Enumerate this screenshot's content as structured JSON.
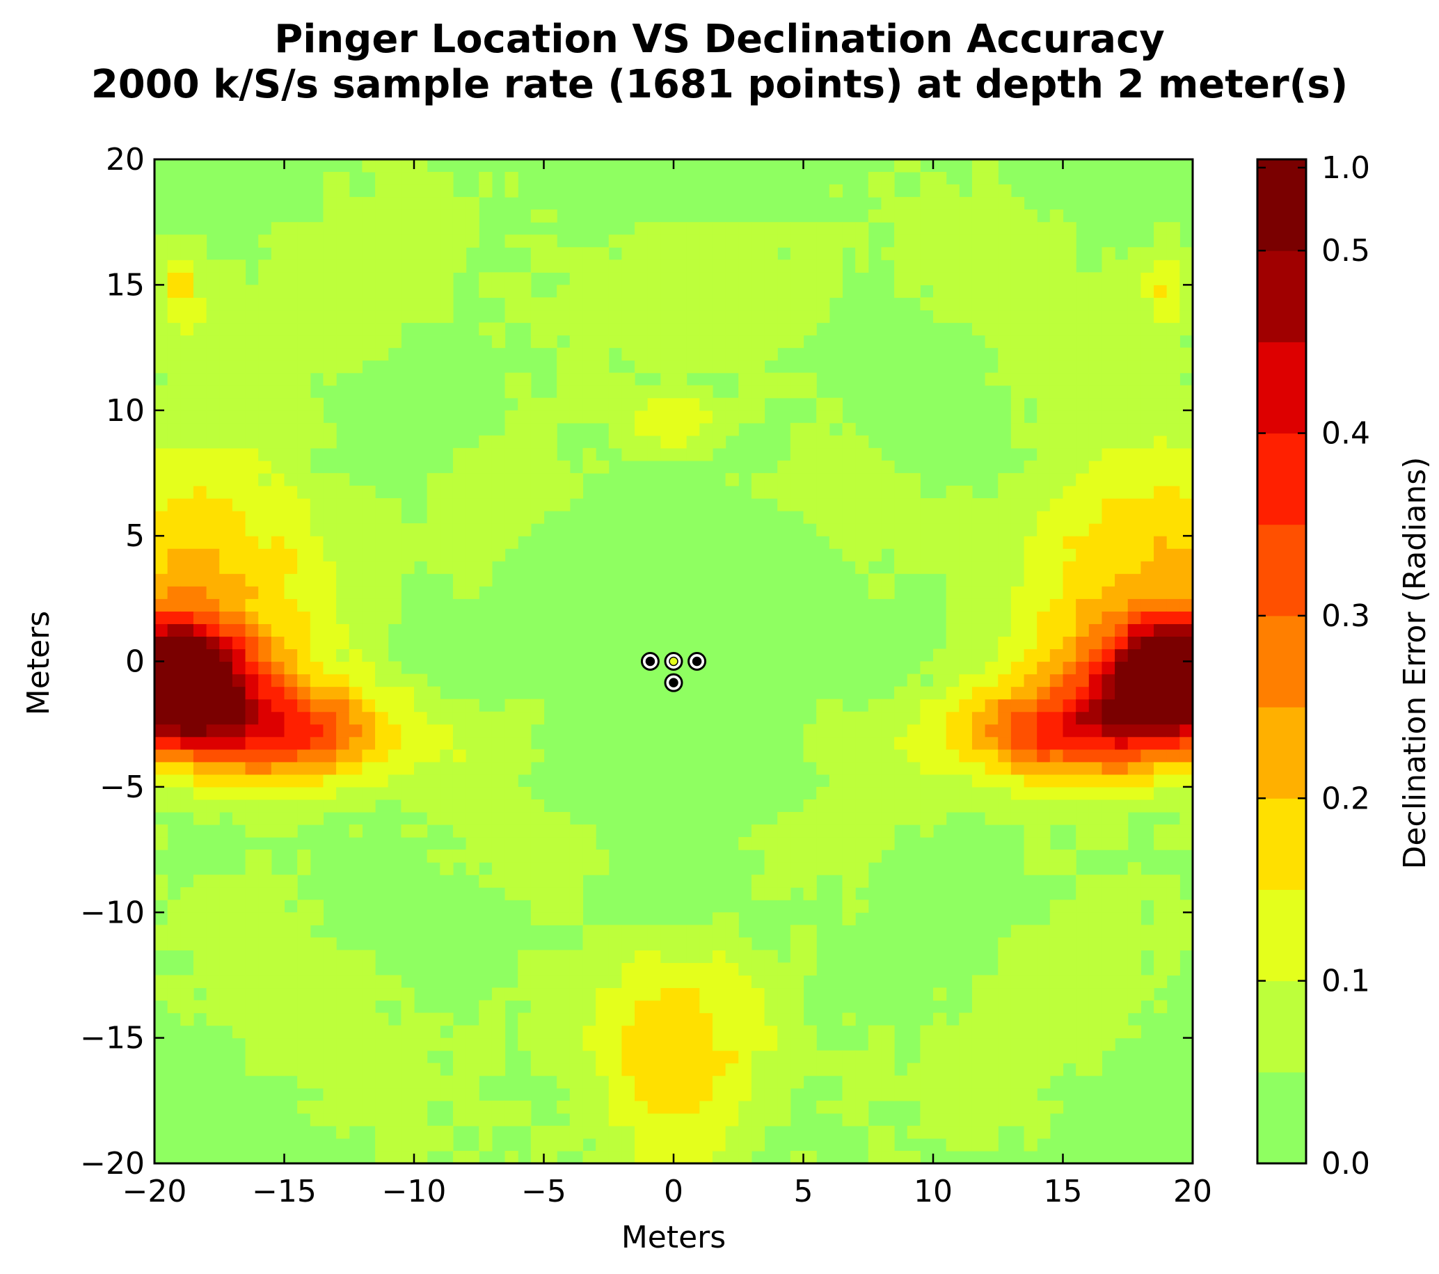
{
  "chart_data": {
    "type": "heatmap",
    "subtype": "filled-contour",
    "title_line1": "Pinger Location VS Declination Accuracy",
    "title_line2": "2000 k/S/s sample rate (1681 points) at depth 2 meter(s)",
    "xlabel": "Meters",
    "ylabel": "Meters",
    "xlim": [
      -20,
      20
    ],
    "ylim": [
      -20,
      20
    ],
    "xticks": [
      -20,
      -15,
      -10,
      -5,
      0,
      5,
      10,
      15,
      20
    ],
    "xtick_labels": [
      "−20",
      "−15",
      "−10",
      "−5",
      "0",
      "5",
      "10",
      "15",
      "20"
    ],
    "yticks": [
      -20,
      -15,
      -10,
      -5,
      0,
      5,
      10,
      15,
      20
    ],
    "ytick_labels": [
      "−20",
      "−15",
      "−10",
      "−5",
      "0",
      "5",
      "10",
      "15",
      "20"
    ],
    "grid": false,
    "colorbar": {
      "label": "Declination Error (Radians)",
      "levels": [
        0.0,
        0.05,
        0.1,
        0.15,
        0.2,
        0.25,
        0.3,
        0.35,
        0.4,
        0.45,
        0.5,
        1.05
      ],
      "ticks": [
        0.0,
        0.1,
        0.2,
        0.3,
        0.4,
        0.5,
        1.0
      ],
      "tick_labels": [
        "0.0",
        "0.1",
        "0.2",
        "0.3",
        "0.4",
        "0.5",
        "1.0"
      ],
      "colors": [
        "#8fff61",
        "#bdff3b",
        "#e4ff1c",
        "#ffe000",
        "#ffb000",
        "#ff7f00",
        "#ff5000",
        "#ff2000",
        "#dd0000",
        "#a00000",
        "#7a0000"
      ]
    },
    "hotspots": [
      {
        "x": -19.5,
        "y": -0.5,
        "value": 0.6,
        "rx": 3.2,
        "ry": 2.3
      },
      {
        "x": -16.0,
        "y": -2.8,
        "value": 0.3,
        "rx": 5.5,
        "ry": 2.0
      },
      {
        "x": -19.0,
        "y": 4.0,
        "value": 0.16,
        "rx": 5.0,
        "ry": 4.0
      },
      {
        "x": -19.0,
        "y": 15.0,
        "value": 0.12,
        "rx": 1.0,
        "ry": 2.0
      },
      {
        "x": 19.5,
        "y": -0.5,
        "value": 0.6,
        "rx": 3.2,
        "ry": 2.3
      },
      {
        "x": 16.0,
        "y": -2.8,
        "value": 0.3,
        "rx": 5.5,
        "ry": 2.0
      },
      {
        "x": 19.0,
        "y": 4.0,
        "value": 0.16,
        "rx": 5.0,
        "ry": 4.0
      },
      {
        "x": 19.0,
        "y": 15.0,
        "value": 0.12,
        "rx": 1.0,
        "ry": 2.0
      },
      {
        "x": 0.0,
        "y": -17.0,
        "value": 0.13,
        "rx": 3.0,
        "ry": 5.0
      },
      {
        "x": 0.0,
        "y": 9.5,
        "value": 0.12,
        "rx": 1.8,
        "ry": 1.2
      }
    ],
    "hydrophones": [
      {
        "x": -0.9,
        "y": 0.0,
        "fill": "#000000"
      },
      {
        "x": 0.0,
        "y": 0.0,
        "fill": "#e4ff1c"
      },
      {
        "x": 0.9,
        "y": 0.0,
        "fill": "#000000"
      },
      {
        "x": 0.0,
        "y": -0.85,
        "fill": "#000000"
      }
    ]
  }
}
